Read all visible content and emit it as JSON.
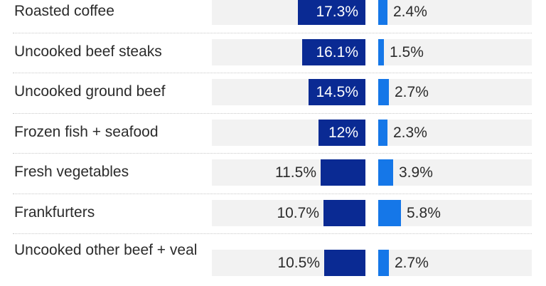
{
  "chart_data": {
    "type": "bar",
    "orientation": "horizontal",
    "categories": [
      "Roasted coffee",
      "Uncooked beef steaks",
      "Uncooked ground beef",
      "Frozen fish + seafood",
      "Fresh vegetables",
      "Frankfurters",
      "Uncooked other beef + veal"
    ],
    "series": [
      {
        "values": [
          17.3,
          16.1,
          14.5,
          12,
          11.5,
          10.7,
          10.5
        ],
        "labels": [
          "17.3%",
          "16.1%",
          "14.5%",
          "12%",
          "11.5%",
          "10.7%",
          "10.5%"
        ],
        "color": "#0a2a93"
      },
      {
        "values": [
          2.4,
          1.5,
          2.7,
          2.3,
          3.9,
          5.8,
          2.7
        ],
        "labels": [
          "2.4%",
          "1.5%",
          "2.7%",
          "2.3%",
          "3.9%",
          "5.8%",
          "2.7%"
        ],
        "color": "#1577e8"
      }
    ],
    "track_color": "#f2f2f2",
    "value_unit": "%",
    "legend": "none",
    "grid": false
  }
}
